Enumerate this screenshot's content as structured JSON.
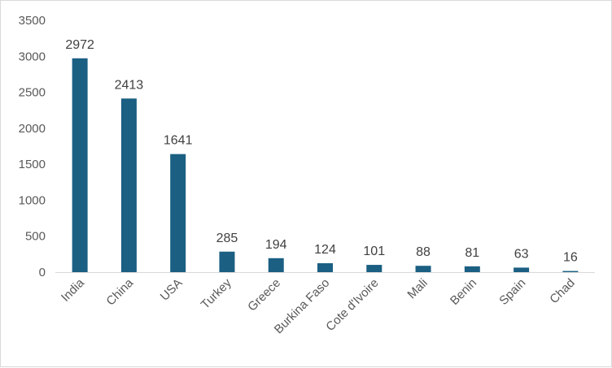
{
  "colors": {
    "bar": "#1b5f83",
    "axis": "#d9d9d9",
    "tick_text": "#595959",
    "label_text": "#404040"
  },
  "chart_data": {
    "type": "bar",
    "categories": [
      "India",
      "China",
      "USA",
      "Turkey",
      "Greece",
      "Burkina Faso",
      "Cote d'Ivoire",
      "Mali",
      "Benin",
      "Spain",
      "Chad"
    ],
    "values": [
      2972,
      2413,
      1641,
      285,
      194,
      124,
      101,
      88,
      81,
      63,
      16
    ],
    "title": "",
    "xlabel": "",
    "ylabel": "",
    "ylim": [
      0,
      3500
    ],
    "yticks": [
      0,
      500,
      1000,
      1500,
      2000,
      2500,
      3000,
      3500
    ],
    "grid": false,
    "legend": "none"
  }
}
